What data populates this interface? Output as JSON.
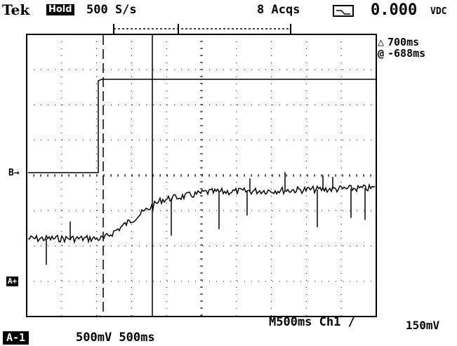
{
  "header": {
    "brand": "Tek",
    "hold_badge": "Hold",
    "sample_rate": "500 S/s",
    "acquisitions": "8 Acqs",
    "meter_value": "0.000",
    "meter_unit": "VDC"
  },
  "cursor_readout": {
    "delta_symbol": "△",
    "delta_value": "700ms",
    "at_symbol": "@",
    "at_value": "-688ms"
  },
  "markers": {
    "b": "B→",
    "a": "A+"
  },
  "footer": {
    "timebase_trigger": "M500ms Ch1 ∕",
    "trigger_level": "150mV",
    "channel_tag": "A-1",
    "scale": "500mV 500ms"
  },
  "icons": [
    "scope-mode-icon",
    "trigger-slope-icon"
  ],
  "colors": {
    "screen_bg": "#ffffff",
    "trace": "#000000"
  }
}
